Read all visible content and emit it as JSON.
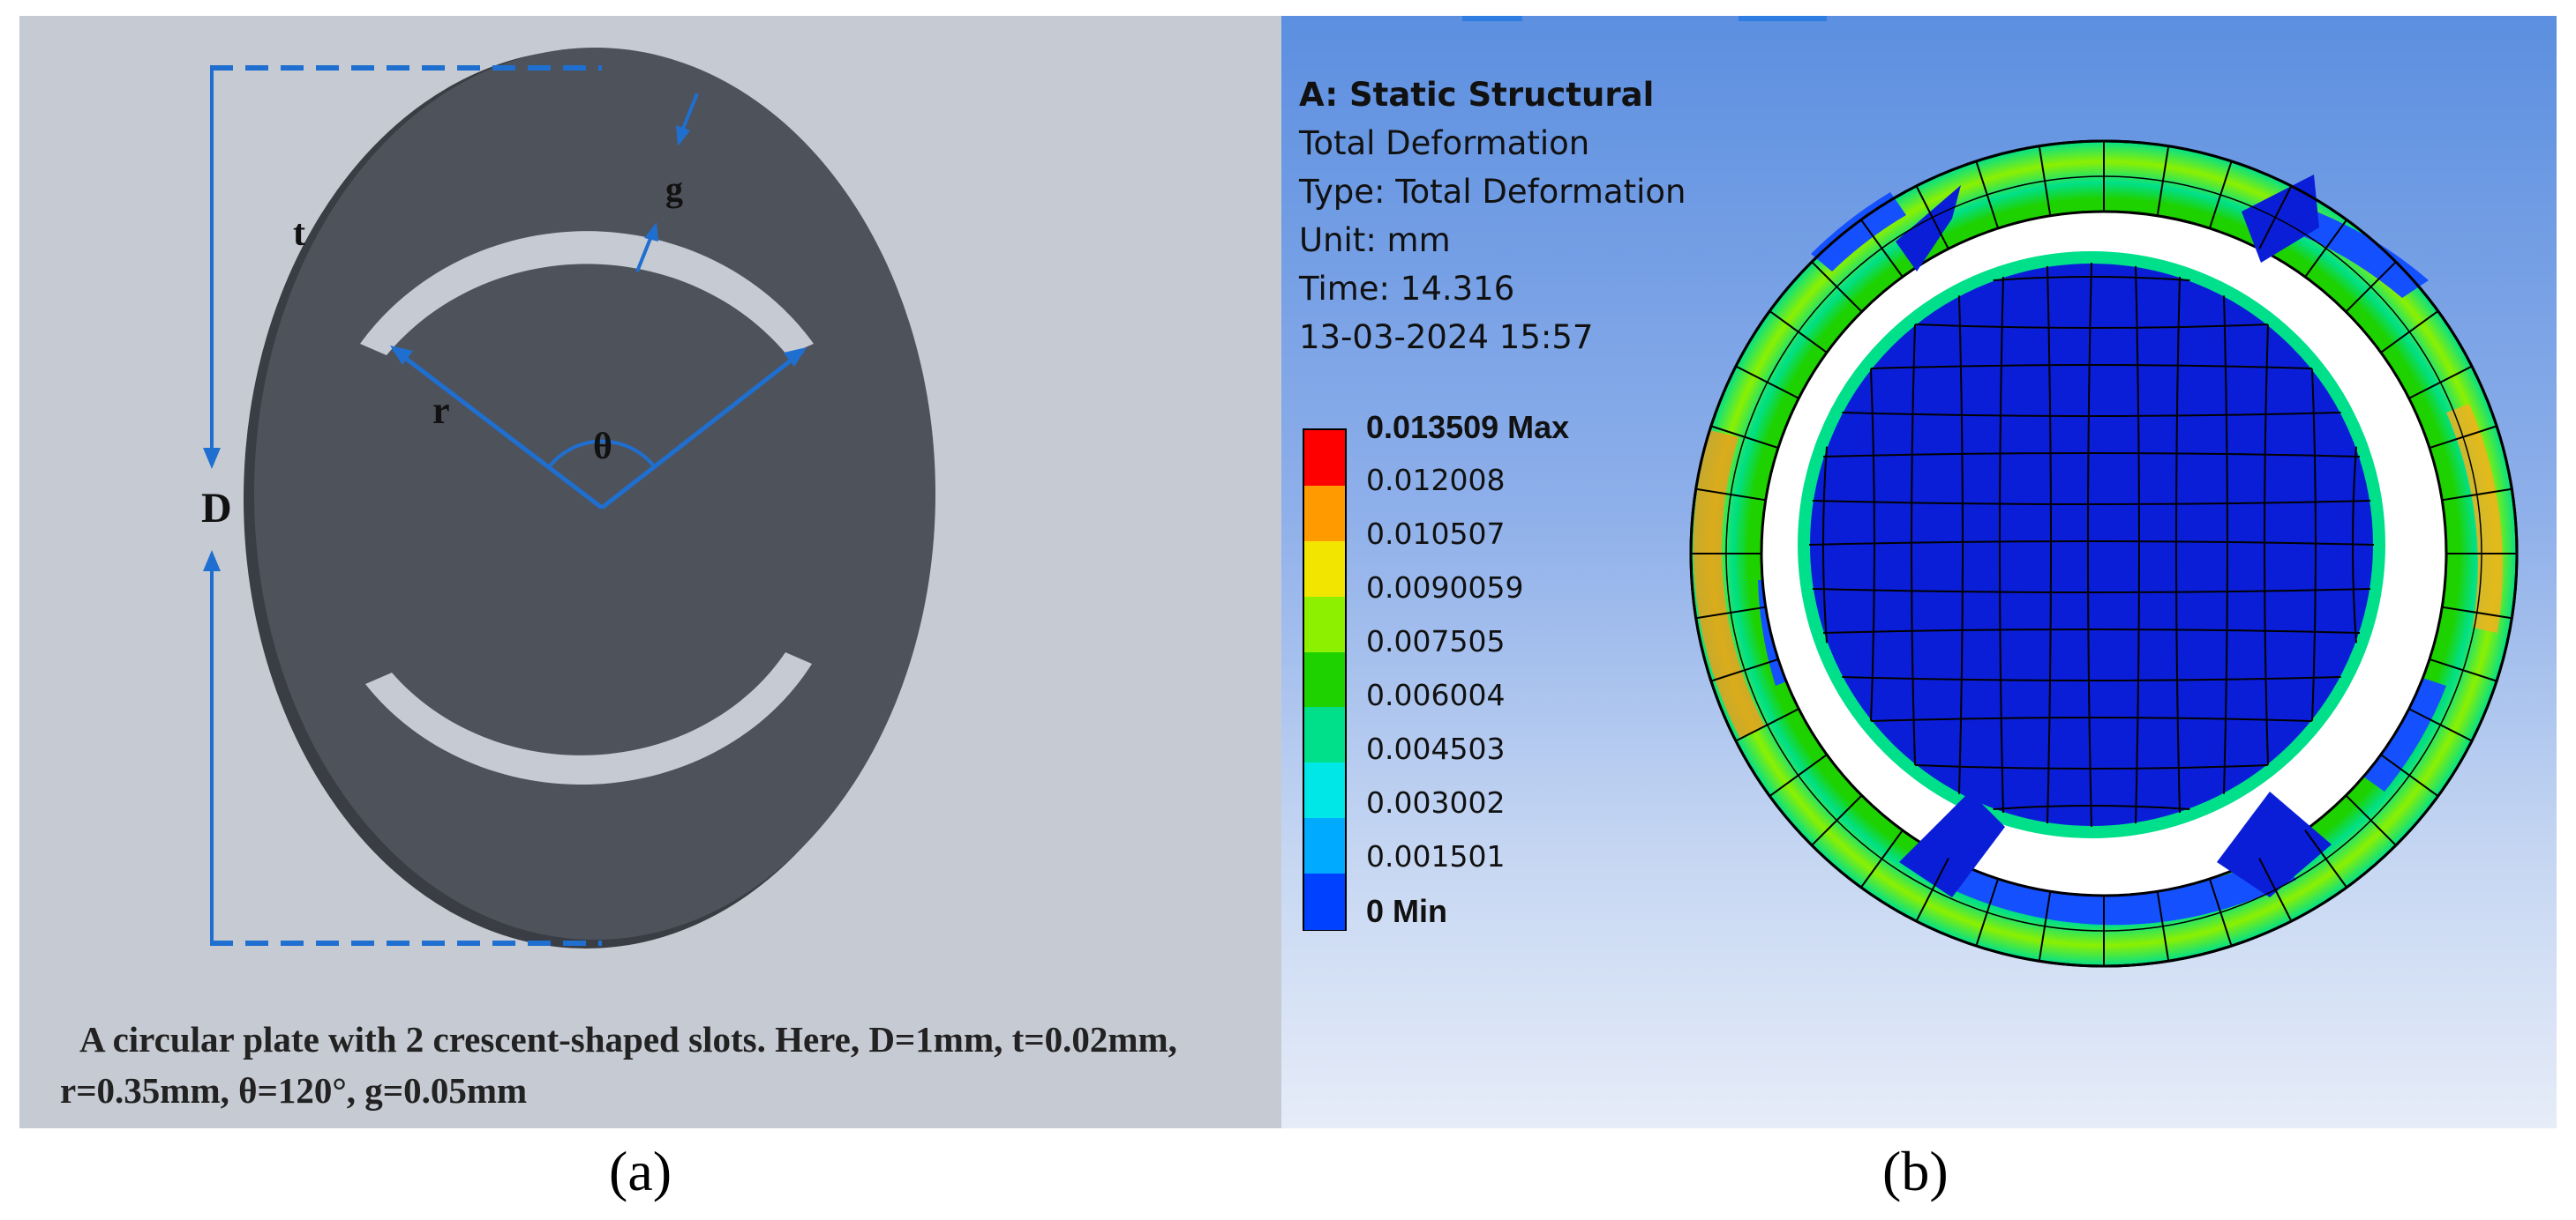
{
  "panel_a": {
    "labels": {
      "D": "D",
      "t": "t",
      "g": "g",
      "r": "r",
      "theta": "θ"
    },
    "caption_line1": "A circular plate with 2 crescent-shaped slots. Here, D=1mm, t=0.02mm,",
    "caption_line2": "r=0.35mm, θ=120°, g=0.05mm",
    "colors": {
      "plate": "#4e525b",
      "background": "#c6cad2",
      "dimension": "#1f6fd0"
    }
  },
  "panel_b": {
    "title": "A: Static Structural",
    "info": [
      "Total Deformation",
      "Type: Total Deformation",
      "Unit: mm",
      "Time: 14.316",
      "13-03-2024 15:57"
    ],
    "legend": [
      {
        "label": "0.013509 Max",
        "color": "#ff0000"
      },
      {
        "label": "0.012008",
        "color": "#ff9a00"
      },
      {
        "label": "0.010507",
        "color": "#f2e600"
      },
      {
        "label": "0.0090059",
        "color": "#8cf000"
      },
      {
        "label": "0.007505",
        "color": "#1ed200"
      },
      {
        "label": "0.006004",
        "color": "#00e08a"
      },
      {
        "label": "0.004503",
        "color": "#00e7e7"
      },
      {
        "label": "0.003002",
        "color": "#00aaff"
      },
      {
        "label": "0.001501",
        "color": "#0040ff"
      },
      {
        "label": "0 Min",
        "color": "#0000ff"
      }
    ]
  },
  "sublabels": {
    "a": "(a)",
    "b": "(b)"
  }
}
